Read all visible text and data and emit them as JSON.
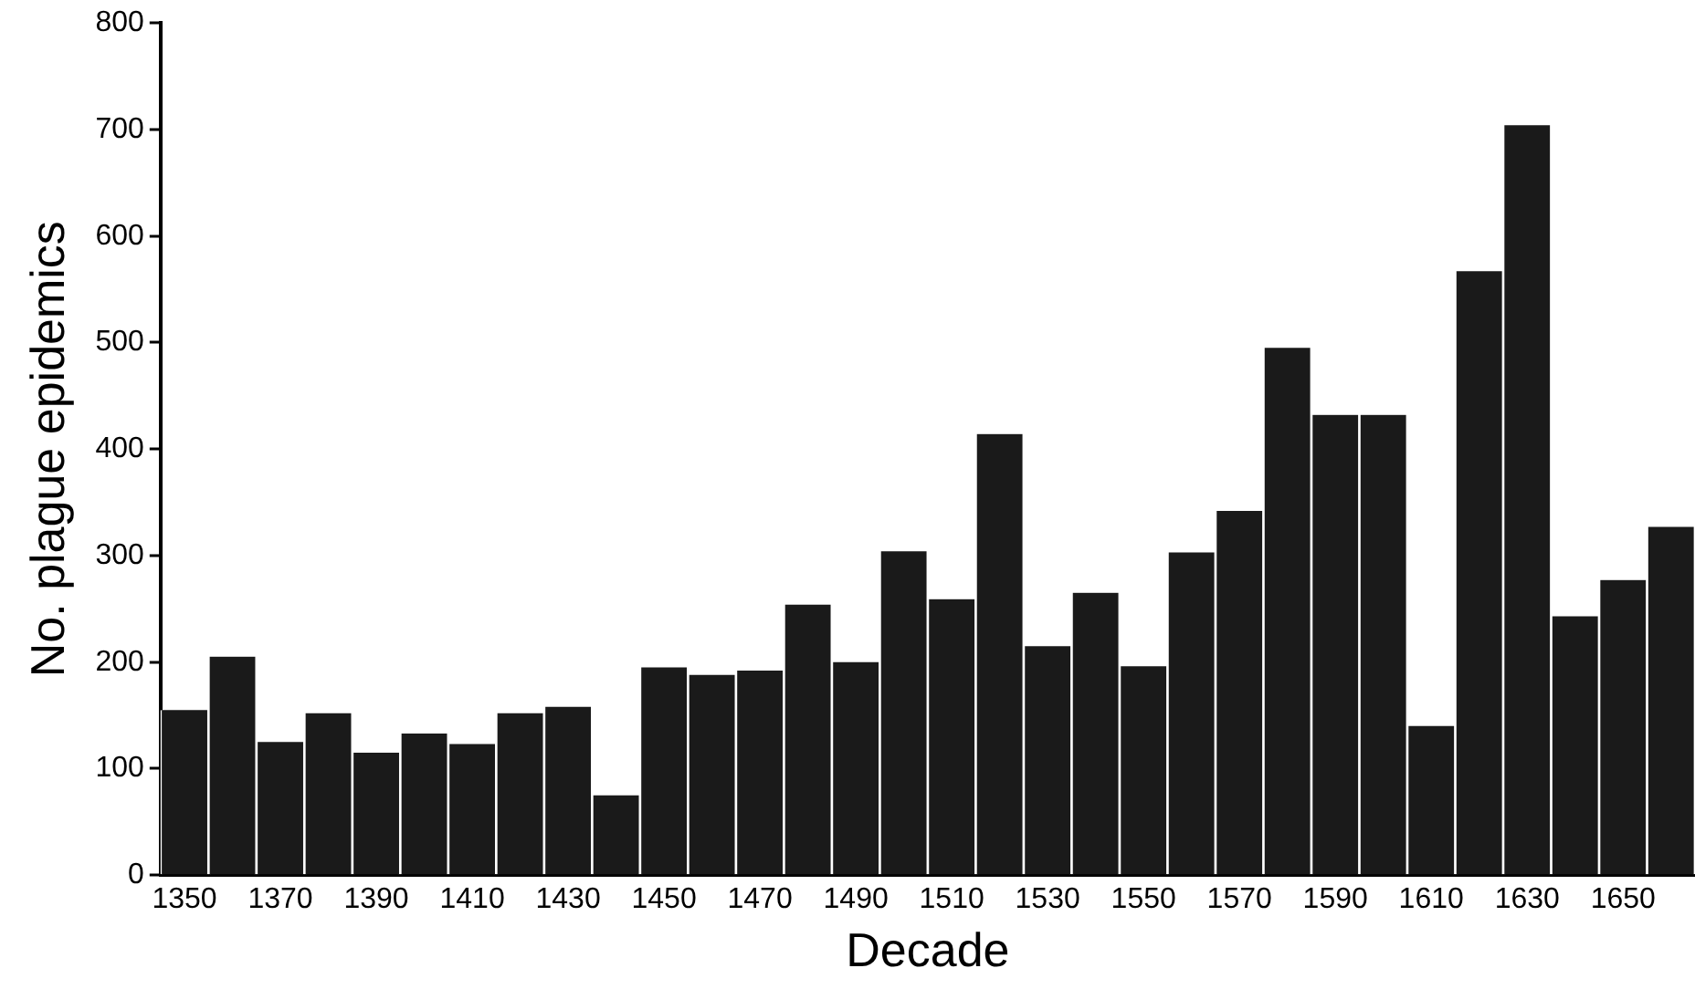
{
  "chart_data": {
    "type": "bar",
    "xlabel": "Decade",
    "ylabel": "No. plague epidemics",
    "categories": [
      "1350",
      null,
      "1370",
      null,
      "1390",
      null,
      "1410",
      null,
      "1430",
      null,
      "1450",
      null,
      "1470",
      null,
      "1490",
      null,
      "1510",
      null,
      "1530",
      null,
      "1550",
      null,
      "1570",
      null,
      "1590",
      null,
      "1610",
      null,
      "1630",
      null,
      "1650",
      null
    ],
    "values": [
      155,
      205,
      125,
      152,
      115,
      133,
      123,
      152,
      158,
      75,
      195,
      188,
      192,
      254,
      200,
      304,
      259,
      414,
      215,
      265,
      196,
      303,
      342,
      495,
      432,
      432,
      140,
      567,
      704,
      243,
      277,
      327
    ],
    "color": "#1a1a1a",
    "ylim": [
      0,
      800
    ],
    "yticks": [
      0,
      100,
      200,
      300,
      400,
      500,
      600,
      700,
      800
    ],
    "grid": false,
    "legend": false
  }
}
